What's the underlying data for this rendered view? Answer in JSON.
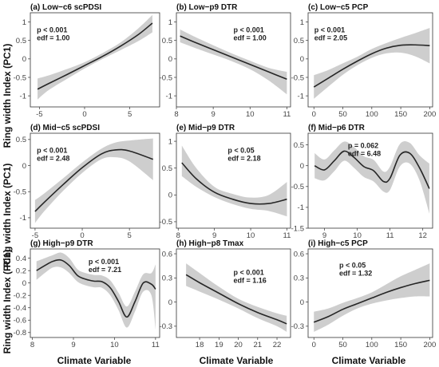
{
  "figure": {
    "ylabel": "Ring width Index (PC1)",
    "xlabel": "Climate Variable"
  },
  "chart_data": [
    {
      "type": "line",
      "title": "(a) Low−c6 scPDSI",
      "stat_p": "p < 0.001",
      "stat_edf": "edf = 1.00",
      "xlim": [
        -6,
        8.3
      ],
      "ylim": [
        -1.3,
        1.25
      ],
      "xticks": [
        -5,
        0,
        5
      ],
      "yticks": [
        -1.0,
        -0.5,
        0.0,
        0.5,
        1.0
      ],
      "x": [
        -5.2,
        -4,
        -2,
        0,
        2,
        4,
        6,
        7.5
      ],
      "y": [
        -0.82,
        -0.67,
        -0.43,
        -0.18,
        0.07,
        0.35,
        0.67,
        0.97
      ],
      "lower": [
        -1.1,
        -0.85,
        -0.55,
        -0.26,
        0.0,
        0.24,
        0.49,
        0.72
      ],
      "upper": [
        -0.53,
        -0.45,
        -0.28,
        -0.09,
        0.16,
        0.45,
        0.84,
        1.19
      ]
    },
    {
      "type": "line",
      "title": "(b) Low−p9 DTR",
      "stat_p": "p < 0.001",
      "stat_edf": "edf = 1.00",
      "xlim": [
        8,
        11.1
      ],
      "ylim": [
        -1.3,
        1.25
      ],
      "xticks": [
        8,
        9,
        10,
        11
      ],
      "yticks": [
        -1.0,
        -0.5,
        0.0,
        0.5,
        1.0
      ],
      "x": [
        8.1,
        8.5,
        9,
        9.5,
        10,
        10.5,
        11
      ],
      "y": [
        0.62,
        0.45,
        0.25,
        0.05,
        -0.15,
        -0.35,
        -0.55
      ],
      "lower": [
        0.45,
        0.3,
        0.12,
        -0.06,
        -0.28,
        -0.58,
        -0.96
      ],
      "upper": [
        0.8,
        0.6,
        0.37,
        0.15,
        -0.05,
        -0.24,
        -0.35
      ]
    },
    {
      "type": "line",
      "title": "(c) Low−c5 PCP",
      "stat_p": "p < 0.001",
      "stat_edf": "edf = 2.05",
      "xlim": [
        -10,
        205
      ],
      "ylim": [
        -1.3,
        1.25
      ],
      "xticks": [
        0,
        50,
        100,
        150,
        200
      ],
      "yticks": [
        -1.0,
        -0.5,
        0.0,
        0.5,
        1.0
      ],
      "x": [
        0,
        25,
        50,
        75,
        100,
        125,
        150,
        175,
        200
      ],
      "y": [
        -0.76,
        -0.52,
        -0.28,
        -0.06,
        0.14,
        0.29,
        0.37,
        0.38,
        0.36
      ],
      "lower": [
        -1.08,
        -0.75,
        -0.43,
        -0.17,
        0.03,
        0.15,
        0.17,
        0.07,
        -0.12
      ],
      "upper": [
        -0.44,
        -0.3,
        -0.12,
        0.06,
        0.27,
        0.43,
        0.57,
        0.7,
        0.84
      ]
    },
    {
      "type": "line",
      "title": "(d) Mid−c5 scPDSI",
      "stat_p": "p < 0.001",
      "stat_edf": "edf = 2.48",
      "xlim": [
        -5.5,
        8.2
      ],
      "ylim": [
        -1.2,
        0.62
      ],
      "xticks": [
        -5,
        0,
        5
      ],
      "yticks": [
        -1.0,
        -0.5,
        0.0,
        0.5
      ],
      "x": [
        -5,
        -4,
        -2,
        0,
        2,
        3.5,
        5,
        7.5
      ],
      "y": [
        -0.88,
        -0.7,
        -0.36,
        -0.04,
        0.22,
        0.3,
        0.28,
        0.12
      ],
      "lower": [
        -1.1,
        -0.87,
        -0.48,
        -0.14,
        0.12,
        0.16,
        0.08,
        -0.28
      ],
      "upper": [
        -0.66,
        -0.53,
        -0.24,
        0.06,
        0.32,
        0.44,
        0.48,
        0.52
      ]
    },
    {
      "type": "line",
      "title": "(e) Mid−p9 DTR",
      "stat_p": "p < 0.05",
      "stat_edf": "edf = 2.18",
      "xlim": [
        7.95,
        11.1
      ],
      "ylim": [
        -0.62,
        1.15
      ],
      "xticks": [
        8,
        9,
        10,
        11
      ],
      "yticks": [
        -0.5,
        0.0,
        0.5,
        1.0
      ],
      "x": [
        8.1,
        8.5,
        9,
        9.5,
        10,
        10.5,
        11
      ],
      "y": [
        0.6,
        0.3,
        0.05,
        -0.08,
        -0.16,
        -0.16,
        -0.08
      ],
      "lower": [
        0.35,
        0.15,
        -0.04,
        -0.17,
        -0.26,
        -0.3,
        -0.4
      ],
      "upper": [
        0.92,
        0.5,
        0.15,
        0.02,
        -0.05,
        0.0,
        0.24
      ]
    },
    {
      "type": "line",
      "title": "(f) Mid−p6 DTR",
      "stat_p": "p = 0.062",
      "stat_edf": "edf = 6.48",
      "xlim": [
        8.5,
        12.3
      ],
      "ylim": [
        -1.5,
        0.78
      ],
      "xticks": [
        9,
        10,
        11,
        12
      ],
      "yticks": [
        -1.5,
        -1.0,
        -0.5,
        0.0,
        0.5
      ],
      "x": [
        8.7,
        9.0,
        9.3,
        9.6,
        9.9,
        10.2,
        10.5,
        10.8,
        11.0,
        11.3,
        11.6,
        11.9,
        12.2
      ],
      "y": [
        0.0,
        -0.1,
        0.12,
        0.35,
        0.2,
        -0.02,
        -0.12,
        -0.38,
        -0.3,
        0.25,
        0.3,
        -0.05,
        -0.55
      ],
      "lower": [
        -0.3,
        -0.35,
        -0.13,
        0.12,
        -0.05,
        -0.27,
        -0.38,
        -0.62,
        -0.58,
        -0.02,
        0.05,
        -0.35,
        -1.15
      ],
      "upper": [
        0.3,
        0.15,
        0.37,
        0.58,
        0.45,
        0.23,
        0.14,
        -0.14,
        -0.02,
        0.52,
        0.55,
        0.25,
        0.05
      ]
    },
    {
      "type": "line",
      "title": "(g) High−p9 DTR",
      "stat_p": "p < 0.001",
      "stat_edf": "edf = 7.21",
      "xlim": [
        7.95,
        11.1
      ],
      "ylim": [
        -0.88,
        0.55
      ],
      "xticks": [
        8,
        9,
        10,
        11
      ],
      "yticks": [
        -0.8,
        -0.6,
        -0.4,
        -0.2,
        0.0,
        0.2,
        0.4
      ],
      "x": [
        8.1,
        8.3,
        8.5,
        8.7,
        8.9,
        9.1,
        9.3,
        9.5,
        9.7,
        9.9,
        10.1,
        10.3,
        10.5,
        10.7,
        10.9,
        11.0
      ],
      "y": [
        0.2,
        0.28,
        0.35,
        0.37,
        0.28,
        0.12,
        0.06,
        0.03,
        0.02,
        -0.08,
        -0.3,
        -0.55,
        -0.3,
        0.0,
        -0.02,
        -0.1
      ],
      "lower": [
        0.05,
        0.16,
        0.25,
        0.25,
        0.16,
        0.02,
        -0.04,
        -0.07,
        -0.08,
        -0.2,
        -0.44,
        -0.72,
        -0.46,
        -0.14,
        -0.2,
        -0.75
      ],
      "upper": [
        0.35,
        0.4,
        0.45,
        0.49,
        0.4,
        0.22,
        0.16,
        0.13,
        0.12,
        0.04,
        -0.16,
        -0.38,
        -0.14,
        0.14,
        0.16,
        0.3
      ]
    },
    {
      "type": "line",
      "title": "(h) High−p8 Tmax",
      "stat_p": "p < 0.001",
      "stat_edf": "edf = 1.16",
      "xlim": [
        16.8,
        22.7
      ],
      "ylim": [
        -0.44,
        0.66
      ],
      "xticks": [
        18,
        19,
        20,
        21,
        22
      ],
      "yticks": [
        -0.3,
        0.0,
        0.3,
        0.6
      ],
      "x": [
        17.3,
        18,
        19,
        20,
        21,
        22,
        22.5
      ],
      "y": [
        0.34,
        0.24,
        0.11,
        -0.02,
        -0.13,
        -0.22,
        -0.27
      ],
      "lower": [
        0.2,
        0.13,
        0.03,
        -0.08,
        -0.2,
        -0.3,
        -0.37
      ],
      "upper": [
        0.48,
        0.36,
        0.19,
        0.04,
        -0.06,
        -0.14,
        -0.17
      ]
    },
    {
      "type": "line",
      "title": "(i) High−c5 PCP",
      "stat_p": "p < 0.05",
      "stat_edf": "edf = 1.32",
      "xlim": [
        -10,
        205
      ],
      "ylim": [
        -0.44,
        0.66
      ],
      "xticks": [
        0,
        50,
        100,
        150,
        200
      ],
      "yticks": [
        -0.3,
        0.0,
        0.3,
        0.6
      ],
      "x": [
        0,
        25,
        50,
        75,
        100,
        125,
        150,
        175,
        200
      ],
      "y": [
        -0.25,
        -0.18,
        -0.09,
        -0.02,
        0.05,
        0.12,
        0.18,
        0.23,
        0.27
      ],
      "lower": [
        -0.37,
        -0.28,
        -0.17,
        -0.08,
        -0.02,
        0.02,
        0.05,
        0.07,
        0.07
      ],
      "upper": [
        -0.12,
        -0.08,
        -0.01,
        0.05,
        0.12,
        0.22,
        0.32,
        0.4,
        0.48
      ]
    }
  ]
}
